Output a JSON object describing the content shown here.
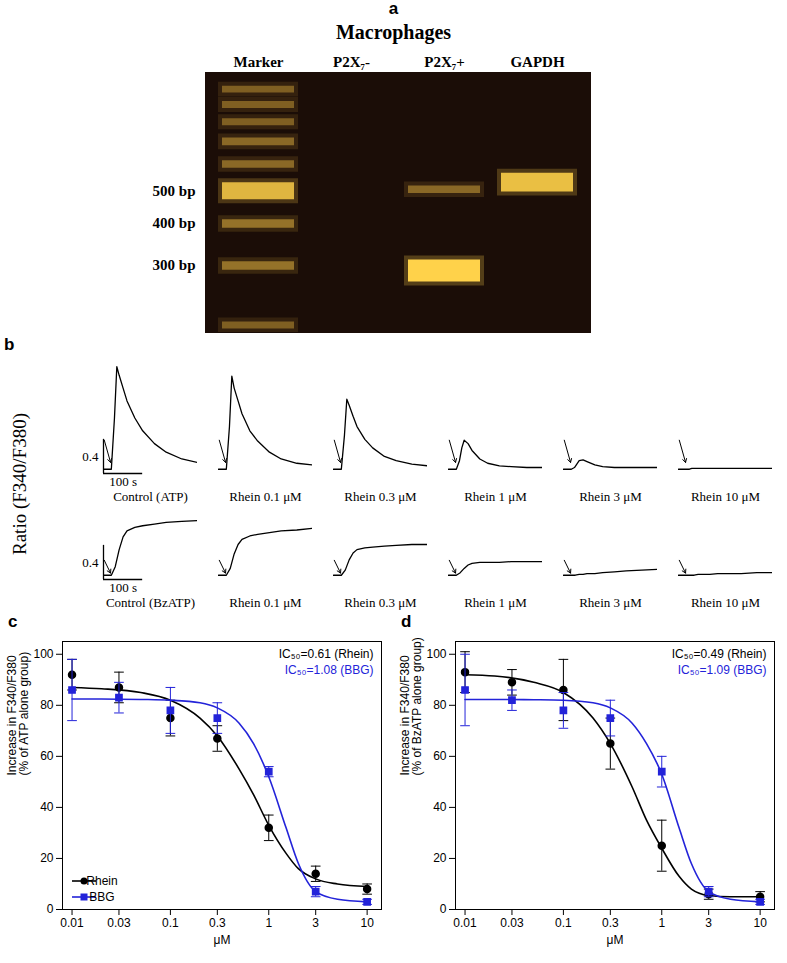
{
  "chart_data": [
    {
      "type": "gel",
      "panel_label": "a",
      "title": "Macrophages",
      "categories": [
        "Marker",
        "P2X₇-",
        "P2X₇+",
        "GAPDH"
      ],
      "log": "y",
      "ylim": [
        190,
        1120
      ],
      "yticks": [
        {
          "value": 300,
          "label": "300 bp"
        },
        {
          "value": 400,
          "label": "400 bp"
        },
        {
          "value": 500,
          "label": "500 bp"
        }
      ],
      "color": "#ffd24a",
      "bands": [
        {
          "lane": "Marker",
          "bp": 200,
          "intensity": 0.4
        },
        {
          "lane": "Marker",
          "bp": 300,
          "intensity": 0.5
        },
        {
          "lane": "Marker",
          "bp": 400,
          "intensity": 0.5
        },
        {
          "lane": "Marker",
          "bp": 500,
          "intensity": 0.85
        },
        {
          "lane": "Marker",
          "bp": 600,
          "intensity": 0.45
        },
        {
          "lane": "Marker",
          "bp": 700,
          "intensity": 0.45
        },
        {
          "lane": "Marker",
          "bp": 800,
          "intensity": 0.4
        },
        {
          "lane": "Marker",
          "bp": 900,
          "intensity": 0.4
        },
        {
          "lane": "Marker",
          "bp": 1000,
          "intensity": 0.4
        },
        {
          "lane": "P2X₇+",
          "bp": 290,
          "intensity": 1.0
        },
        {
          "lane": "P2X₇+",
          "bp": 505,
          "intensity": 0.45
        },
        {
          "lane": "GAPDH",
          "bp": 530,
          "intensity": 0.9
        }
      ]
    },
    {
      "type": "line",
      "panel_label": "b",
      "y_label": "Ratio (F340/F380)",
      "tick_labels": false,
      "arrow_x": 20,
      "scale_bar": {
        "x": {
          "value": 100,
          "label": "100 s"
        },
        "y": 0.4
      },
      "rows": [
        {
          "xlim": [
            0,
            240
          ],
          "ylim": [
            -0.05,
            1.25
          ],
          "x": [
            0,
            20,
            28,
            34,
            40,
            50,
            60,
            80,
            100,
            130,
            160,
            200,
            240
          ],
          "series": [
            {
              "name": "Control (ATP)",
              "color": "#000000",
              "values": [
                0,
                0,
                0.6,
                1.2,
                1.1,
                0.95,
                0.8,
                0.6,
                0.45,
                0.3,
                0.2,
                0.12,
                0.08
              ]
            },
            {
              "name": "Rhein 0.1 μM",
              "color": "#000000",
              "values": [
                0,
                0,
                0.5,
                1.09,
                0.95,
                0.8,
                0.65,
                0.45,
                0.33,
                0.2,
                0.12,
                0.07,
                0.05
              ]
            },
            {
              "name": "Rhein 0.3 μM",
              "color": "#000000",
              "values": [
                0,
                0,
                0.4,
                0.82,
                0.75,
                0.62,
                0.5,
                0.35,
                0.25,
                0.15,
                0.1,
                0.06,
                0.04
              ]
            },
            {
              "name": "Rhein 1 μM",
              "color": "#000000",
              "values": [
                0,
                0,
                0.1,
                0.25,
                0.34,
                0.3,
                0.22,
                0.12,
                0.07,
                0.04,
                0.03,
                0.02,
                0.02
              ]
            },
            {
              "name": "Rhein 3 μM",
              "color": "#000000",
              "values": [
                0,
                0,
                0.02,
                0.06,
                0.1,
                0.11,
                0.09,
                0.05,
                0.03,
                0.02,
                0.02,
                0.02,
                0.02
              ]
            },
            {
              "name": "Rhein 10 μM",
              "color": "#000000",
              "values": [
                0,
                0,
                0,
                0.01,
                0.01,
                0.01,
                0.01,
                0.01,
                0.01,
                0.01,
                0.01,
                0.01,
                0.01
              ]
            }
          ]
        },
        {
          "xlim": [
            0,
            240
          ],
          "ylim": [
            -0.05,
            0.7
          ],
          "x": [
            0,
            20,
            30,
            40,
            50,
            60,
            80,
            100,
            130,
            160,
            200,
            240
          ],
          "series": [
            {
              "name": "Control (BzATP)",
              "color": "#000000",
              "values": [
                0,
                0,
                0.1,
                0.3,
                0.45,
                0.52,
                0.56,
                0.58,
                0.6,
                0.62,
                0.63,
                0.64
              ]
            },
            {
              "name": "Rhein 0.1 μM",
              "color": "#000000",
              "values": [
                0,
                0,
                0.08,
                0.25,
                0.36,
                0.42,
                0.46,
                0.48,
                0.5,
                0.52,
                0.53,
                0.55
              ]
            },
            {
              "name": "Rhein 0.3 μM",
              "color": "#000000",
              "values": [
                0,
                0,
                0.06,
                0.18,
                0.26,
                0.3,
                0.32,
                0.33,
                0.34,
                0.35,
                0.36,
                0.36
              ]
            },
            {
              "name": "Rhein 1 μM",
              "color": "#000000",
              "values": [
                0,
                0,
                0.03,
                0.08,
                0.12,
                0.14,
                0.15,
                0.15,
                0.15,
                0.16,
                0.16,
                0.16
              ]
            },
            {
              "name": "Rhein 3 μM",
              "color": "#000000",
              "values": [
                0,
                0,
                0,
                0.01,
                0.01,
                0.02,
                0.02,
                0.03,
                0.04,
                0.05,
                0.06,
                0.07
              ]
            },
            {
              "name": "Rhein 10 μM",
              "color": "#000000",
              "values": [
                0,
                0,
                0,
                0,
                0.01,
                0.01,
                0.01,
                0.02,
                0.02,
                0.02,
                0.03,
                0.03
              ]
            }
          ]
        }
      ]
    },
    {
      "type": "scatter",
      "panel_label": "c",
      "x_label": "μM",
      "y_label": "Increase in F340/F380\n(% of ATP alone group)",
      "log": "x",
      "xlim": [
        0.008,
        14
      ],
      "xticks": [
        0.01,
        0.03,
        0.1,
        0.3,
        1,
        3,
        10
      ],
      "ylim": [
        0,
        105
      ],
      "yticks": [
        0,
        20,
        40,
        60,
        80,
        100
      ],
      "legend": "lower left",
      "annotations": [
        {
          "text": "IC₅₀=0.61 (Rhein)",
          "color": "#000000"
        },
        {
          "text": "IC₅₀=1.08 (BBG)",
          "color": "#2323d9"
        }
      ],
      "series": [
        {
          "name": "Rhein",
          "color": "#000000",
          "marker": "circle",
          "x": [
            0.01,
            0.03,
            0.1,
            0.3,
            1,
            3,
            10
          ],
          "values": [
            92,
            87,
            75,
            67,
            32,
            14,
            8
          ],
          "errors": [
            6,
            6,
            7,
            5,
            5,
            3,
            2
          ],
          "fit": {
            "x": [
              0.01,
              0.02,
              0.05,
              0.1,
              0.2,
              0.3,
              0.5,
              0.7,
              1,
              1.5,
              2,
              3,
              5,
              10
            ],
            "values": [
              87,
              86.5,
              85,
              82,
              75,
              68,
              55,
              45,
              33,
              22,
              16,
              12,
              10,
              9
            ]
          }
        },
        {
          "name": "BBG",
          "color": "#2323d9",
          "marker": "square",
          "x": [
            0.01,
            0.03,
            0.1,
            0.3,
            1,
            3,
            10
          ],
          "values": [
            86,
            83,
            78,
            75,
            54,
            7,
            3
          ],
          "errors": [
            12,
            6,
            9,
            6,
            2,
            2,
            1
          ],
          "fit": {
            "x": [
              0.01,
              0.02,
              0.05,
              0.1,
              0.2,
              0.3,
              0.5,
              0.7,
              1,
              1.5,
              2,
              3,
              5,
              10
            ],
            "values": [
              82.5,
              82.5,
              82.3,
              82,
              81,
              79,
              73,
              65,
              52,
              32,
              18,
              7,
              4,
              3
            ]
          }
        }
      ]
    },
    {
      "type": "scatter",
      "panel_label": "d",
      "x_label": "μM",
      "y_label": "Increase in F340/F380\n(% of BzATP alone group)",
      "log": "x",
      "xlim": [
        0.008,
        14
      ],
      "xticks": [
        0.01,
        0.03,
        0.1,
        0.3,
        1,
        3,
        10
      ],
      "ylim": [
        0,
        105
      ],
      "yticks": [
        0,
        20,
        40,
        60,
        80,
        100
      ],
      "annotations": [
        {
          "text": "IC₅₀=0.49 (Rhein)",
          "color": "#000000"
        },
        {
          "text": "IC₅₀=1.09 (BBG)",
          "color": "#2323d9"
        }
      ],
      "series": [
        {
          "name": "Rhein",
          "color": "#000000",
          "marker": "circle",
          "x": [
            0.01,
            0.03,
            0.1,
            0.3,
            1,
            3,
            10
          ],
          "values": [
            93,
            89,
            86,
            65,
            25,
            6,
            5
          ],
          "errors": [
            8,
            5,
            12,
            10,
            10,
            2,
            2
          ],
          "fit": {
            "x": [
              0.01,
              0.02,
              0.05,
              0.1,
              0.2,
              0.3,
              0.5,
              0.7,
              1,
              1.5,
              2,
              3,
              5,
              10
            ],
            "values": [
              92,
              91.5,
              89,
              85,
              75,
              65,
              48,
              35,
              24,
              13,
              8,
              5.5,
              5,
              5
            ]
          }
        },
        {
          "name": "BBG",
          "color": "#2323d9",
          "marker": "square",
          "x": [
            0.01,
            0.03,
            0.1,
            0.3,
            1,
            3,
            10
          ],
          "values": [
            86,
            82,
            78,
            75,
            54,
            7,
            3
          ],
          "errors": [
            14,
            4,
            7,
            7,
            6,
            2,
            1
          ],
          "fit": {
            "x": [
              0.01,
              0.02,
              0.05,
              0.1,
              0.2,
              0.3,
              0.5,
              0.7,
              1,
              1.5,
              2,
              3,
              5,
              10
            ],
            "values": [
              82.3,
              82.3,
              82.2,
              82,
              81,
              79,
              73,
              65,
              53,
              32,
              18,
              7,
              4,
              3
            ]
          }
        }
      ]
    }
  ]
}
